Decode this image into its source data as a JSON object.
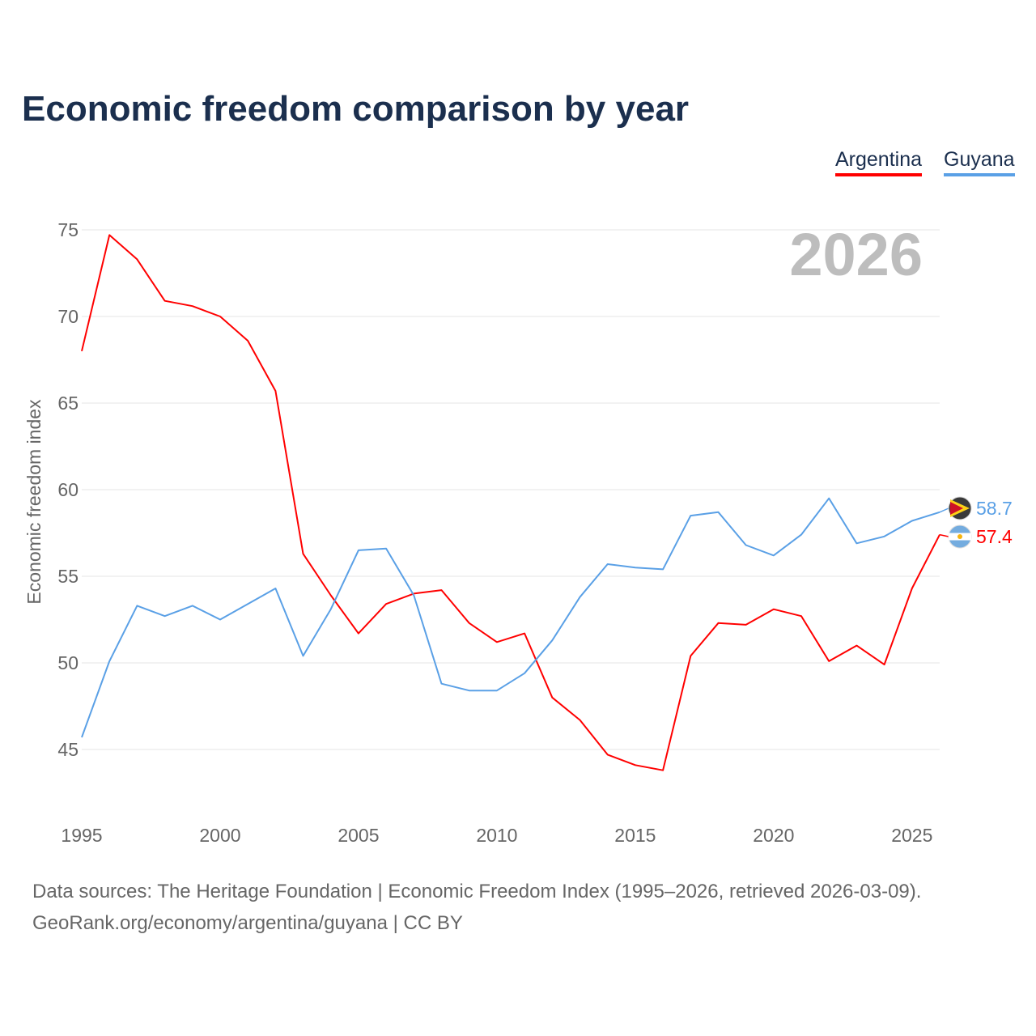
{
  "title": "Economic freedom comparison by year",
  "legend": [
    {
      "label": "Argentina",
      "color": "#ff0000"
    },
    {
      "label": "Guyana",
      "color": "#5aa0e6"
    }
  ],
  "year_watermark": "2026",
  "footer": {
    "line1": "Data sources: The Heritage Foundation | Economic Freedom Index (1995–2026, retrieved 2026-03-09).",
    "line2": "GeoRank.org/economy/argentina/guyana | CC BY"
  },
  "chart_data": {
    "type": "line",
    "title": "Economic freedom comparison by year",
    "xlabel": "",
    "ylabel": "Economic freedom index",
    "x": [
      1995,
      1996,
      1997,
      1998,
      1999,
      2000,
      2001,
      2002,
      2003,
      2004,
      2005,
      2006,
      2007,
      2008,
      2009,
      2010,
      2011,
      2012,
      2013,
      2014,
      2015,
      2016,
      2017,
      2018,
      2019,
      2020,
      2021,
      2022,
      2023,
      2024,
      2025,
      2026
    ],
    "xlim": [
      1995,
      2026
    ],
    "ylim": [
      42,
      77
    ],
    "xticks": [
      1995,
      2000,
      2005,
      2010,
      2015,
      2020,
      2025
    ],
    "yticks": [
      45,
      50,
      55,
      60,
      65,
      70,
      75
    ],
    "grid": true,
    "legend_position": "top-right",
    "series": [
      {
        "name": "Argentina",
        "color": "#ff0000",
        "end_label": "57.4",
        "values": [
          68.0,
          74.7,
          73.3,
          70.9,
          70.6,
          70.0,
          68.6,
          65.7,
          56.3,
          53.9,
          51.7,
          53.4,
          54.0,
          54.2,
          52.3,
          51.2,
          51.7,
          48.0,
          46.7,
          44.7,
          44.1,
          43.8,
          50.4,
          52.3,
          52.2,
          53.1,
          52.7,
          50.1,
          51.0,
          49.9,
          54.3,
          57.4
        ]
      },
      {
        "name": "Guyana",
        "color": "#5aa0e6",
        "end_label": "58.7",
        "values": [
          45.7,
          50.1,
          53.3,
          52.7,
          53.3,
          52.5,
          53.4,
          54.3,
          50.4,
          53.1,
          56.5,
          56.6,
          53.9,
          48.8,
          48.4,
          48.4,
          49.4,
          51.3,
          53.8,
          55.7,
          55.5,
          55.4,
          58.5,
          58.7,
          56.8,
          56.2,
          57.4,
          59.5,
          56.9,
          57.3,
          58.2,
          58.7
        ]
      }
    ]
  }
}
